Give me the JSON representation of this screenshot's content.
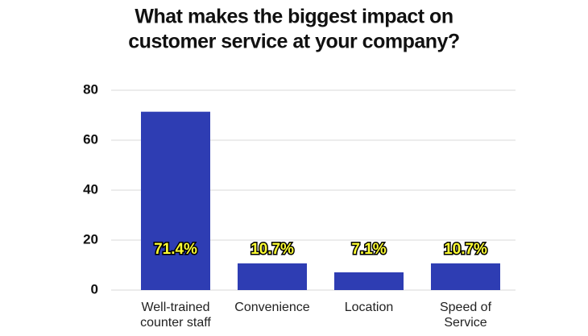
{
  "chart_data": {
    "type": "bar",
    "title": [
      "What  makes the biggest impact on",
      "customer service at your company?"
    ],
    "categories": [
      "Well-trained counter staff",
      "Convenience",
      "Location",
      "Speed of Service"
    ],
    "values": [
      71.4,
      10.7,
      7.1,
      10.7
    ],
    "value_labels": [
      "71.4%",
      "10.7%",
      "7.1%",
      "10.7%"
    ],
    "color": "#2e3db3",
    "ylim": [
      0,
      80
    ],
    "yticks": [
      0,
      20,
      40,
      60,
      80
    ],
    "grid": true
  }
}
